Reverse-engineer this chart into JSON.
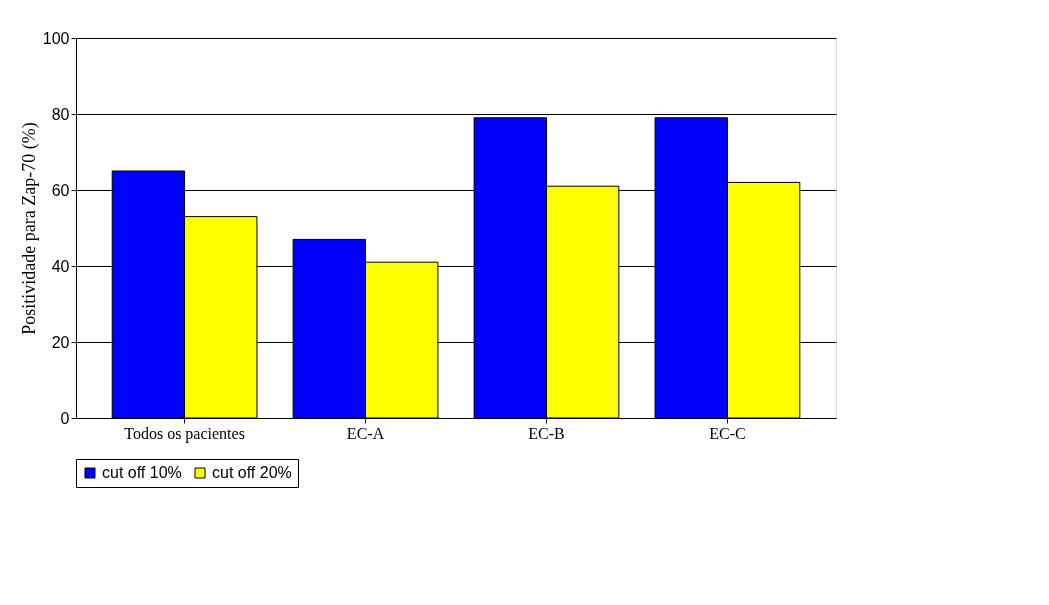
{
  "chart_data": {
    "type": "bar",
    "ylabel": "Positividade para Zap-70 (%)",
    "categories": [
      "Todos os pacientes",
      "EC-A",
      "EC-B",
      "EC-C"
    ],
    "series": [
      {
        "name": "cut off 10%",
        "color": "#0000ff",
        "values": [
          65,
          47,
          79,
          79
        ]
      },
      {
        "name": "cut off 20%",
        "color": "#ffff00",
        "values": [
          53,
          41,
          61,
          62
        ]
      }
    ],
    "ylim": [
      0,
      100
    ],
    "yticks": [
      0,
      20,
      40,
      60,
      80,
      100
    ],
    "grid": "y",
    "legend": "bottom"
  }
}
